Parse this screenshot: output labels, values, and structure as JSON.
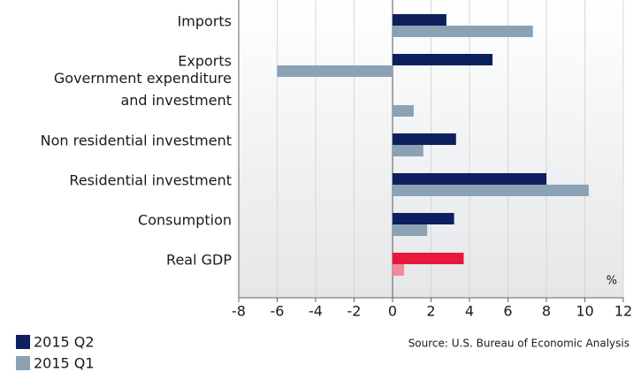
{
  "chart_data": {
    "type": "hbar",
    "categories": [
      "Imports",
      "Exports",
      [
        "Government expenditure",
        "and investment"
      ],
      "Non residential investment",
      "Residential investment",
      "Consumption",
      "Real GDP"
    ],
    "series": [
      {
        "name": "2015 Q2",
        "color": "#0d1f5c",
        "highlight_color": "#e8173c",
        "values": [
          2.8,
          5.2,
          0,
          3.3,
          8.0,
          3.2,
          3.7
        ]
      },
      {
        "name": "2015 Q1",
        "color": "#8aa2b4",
        "highlight_color": "#f28a9a",
        "values": [
          7.3,
          -6.0,
          1.1,
          1.6,
          10.2,
          1.8,
          0.6
        ]
      }
    ],
    "highlight": 6,
    "xlim": [
      -8,
      12
    ],
    "xticks": [
      -8,
      -6,
      -4,
      -2,
      0,
      2,
      4,
      6,
      8,
      10,
      12
    ],
    "unit_label": "%",
    "source": "Source: U.S. Bureau of Economic Analysis",
    "grid": true
  }
}
